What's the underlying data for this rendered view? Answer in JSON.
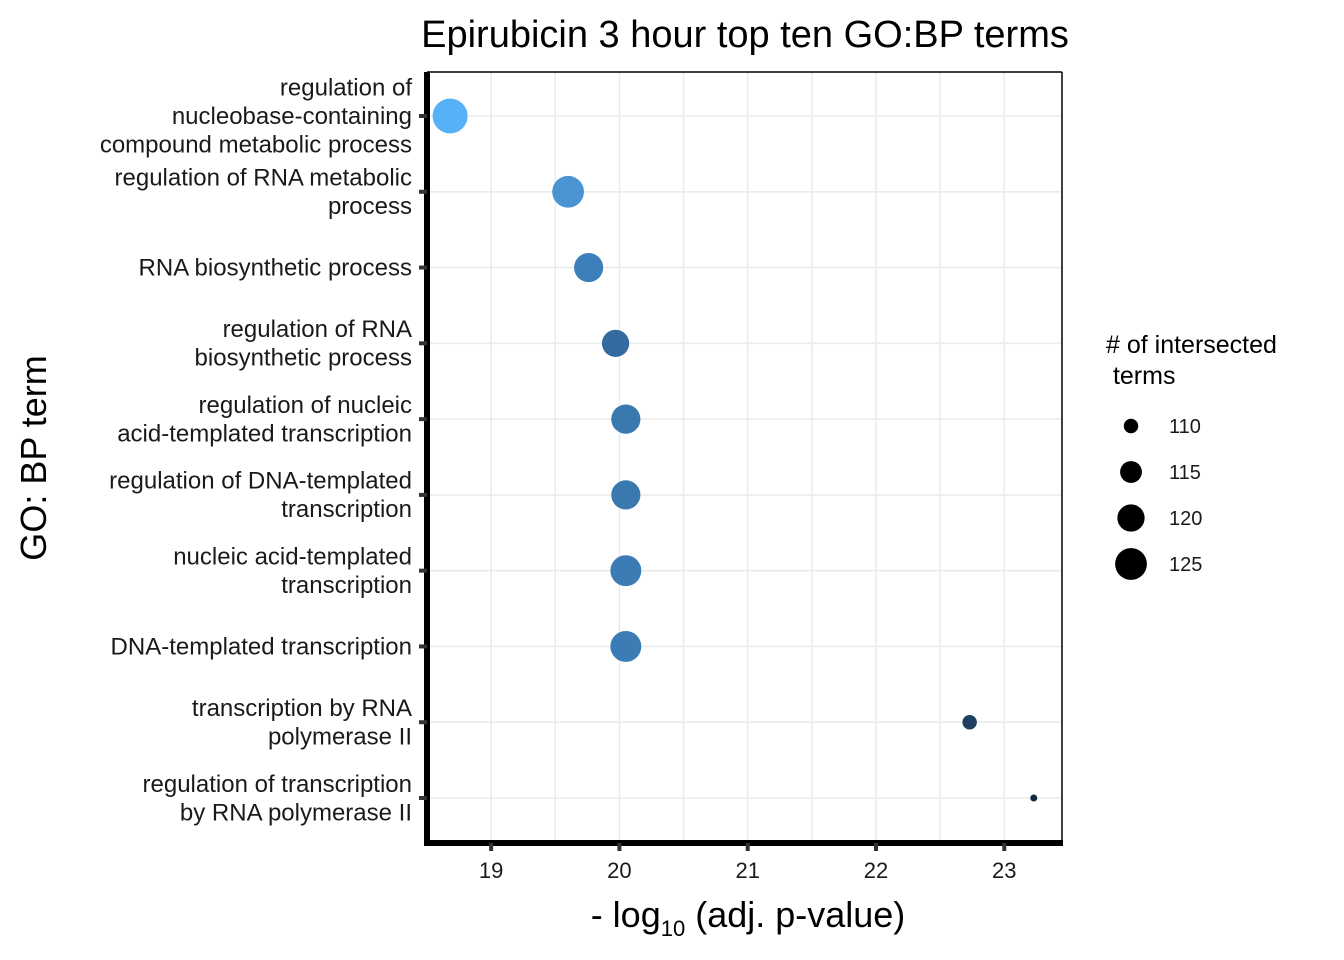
{
  "chart_data": {
    "type": "scatter",
    "title": "Epirubicin 3 hour top ten GO:BP terms",
    "xlabel": {
      "prefix": "- log",
      "subscript": "10",
      "suffix": " (adj. p-value)"
    },
    "ylabel": "GO: BP term",
    "xlim": [
      18.5,
      23.45
    ],
    "xticks": [
      "19",
      "20",
      "21",
      "22",
      "23"
    ],
    "xtick_values": [
      19,
      20,
      21,
      22,
      23
    ],
    "grid": true,
    "legend_position": "right",
    "categories": [
      [
        "regulation of",
        "nucleobase-containing",
        "compound metabolic process"
      ],
      [
        "regulation of RNA metabolic",
        "process"
      ],
      [
        "RNA biosynthetic process"
      ],
      [
        "regulation of RNA",
        "biosynthetic process"
      ],
      [
        "regulation of nucleic",
        "acid-templated transcription"
      ],
      [
        "regulation of DNA-templated",
        "transcription"
      ],
      [
        "nucleic acid-templated",
        "transcription"
      ],
      [
        "DNA-templated transcription"
      ],
      [
        "transcription by RNA",
        "polymerase II"
      ],
      [
        "regulation of transcription",
        "by RNA polymerase II"
      ]
    ],
    "series": [
      {
        "x": [
          18.68,
          19.6,
          19.76,
          19.97,
          20.05,
          20.05,
          20.05,
          20.05,
          22.73,
          23.23
        ],
        "intersections": [
          129,
          125,
          122,
          120,
          122,
          122,
          124,
          124,
          110,
          107
        ],
        "colors": [
          "#56b1f7",
          "#4a94d2",
          "#3d7fba",
          "#336aa0",
          "#3a78b0",
          "#3a78b0",
          "#3c7cb5",
          "#3c7cb5",
          "#1d3f62",
          "#132b43"
        ]
      }
    ],
    "legend": {
      "title_lines": [
        "# of intersected",
        " terms"
      ],
      "labels": [
        "110",
        "115",
        "120",
        "125"
      ],
      "values": [
        110,
        115,
        120,
        125
      ]
    }
  }
}
